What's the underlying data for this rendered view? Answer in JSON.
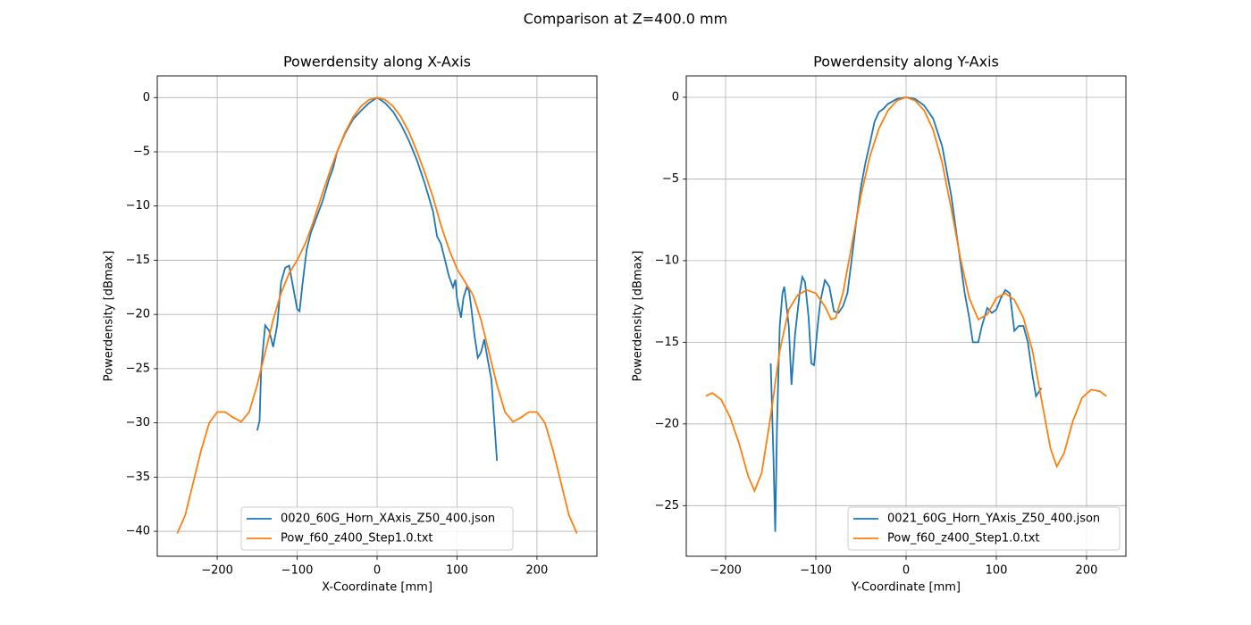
{
  "title": "Comparison at Z=400.0 mm",
  "chart_data": [
    {
      "type": "line",
      "title": "Powerdensity along X-Axis",
      "x_label": "X-Coordinate [mm]",
      "y_label": "Powerdensity [dBmax]",
      "xlim": [
        -275,
        275
      ],
      "ylim": [
        -42.3,
        2
      ],
      "xticks": [
        {
          "value": -200,
          "label": "−200"
        },
        {
          "value": -100,
          "label": "−100"
        },
        0,
        100,
        200
      ],
      "yticks": [
        {
          "value": -40,
          "label": "−40"
        },
        {
          "value": -35,
          "label": "−35"
        },
        {
          "value": -30,
          "label": "−30"
        },
        {
          "value": -25,
          "label": "−25"
        },
        {
          "value": -20,
          "label": "−20"
        },
        {
          "value": -15,
          "label": "−15"
        },
        {
          "value": -10,
          "label": "−10"
        },
        {
          "value": -5,
          "label": "−5"
        },
        0
      ],
      "grid": true,
      "legend_loc": "lower center",
      "series": [
        {
          "name": "0020_60G_Horn_XAxis_Z50_400.json",
          "color": "#1f77b4",
          "x": [
            -150,
            -147,
            -145,
            -140,
            -135,
            -130,
            -125,
            -120,
            -115,
            -110,
            -105,
            -100,
            -97,
            -93,
            -88,
            -83,
            -78,
            -73,
            -68,
            -60,
            -55,
            -50,
            -40,
            -30,
            -20,
            -10,
            0,
            10,
            20,
            30,
            40,
            50,
            60,
            70,
            75,
            80,
            85,
            90,
            95,
            98,
            100,
            105,
            108,
            112,
            115,
            118,
            122,
            126,
            130,
            134,
            138,
            143,
            150
          ],
          "values": [
            -30.7,
            -29.8,
            -25,
            -21,
            -21.5,
            -23,
            -21,
            -17,
            -15.7,
            -15.5,
            -17.5,
            -19.5,
            -19.7,
            -17,
            -14,
            -12.5,
            -11.5,
            -10.5,
            -9.5,
            -7.5,
            -6.5,
            -5,
            -3.3,
            -2,
            -1.2,
            -0.5,
            0,
            -0.5,
            -1.3,
            -2.5,
            -4,
            -5.8,
            -8,
            -10.5,
            -12.8,
            -13.5,
            -15,
            -16.5,
            -17.5,
            -16.8,
            -18.5,
            -20.3,
            -18.5,
            -17.5,
            -17.8,
            -19.5,
            -22,
            -24,
            -23.5,
            -22.3,
            -24,
            -26,
            -33.5
          ]
        },
        {
          "name": "Pow_f60_z400_Step1.0.txt",
          "color": "#ff7f0e",
          "x": [
            -250,
            -240,
            -230,
            -220,
            -210,
            -200,
            -190,
            -180,
            -170,
            -160,
            -150,
            -140,
            -130,
            -120,
            -110,
            -100,
            -90,
            -80,
            -70,
            -60,
            -50,
            -40,
            -30,
            -20,
            -10,
            0,
            10,
            20,
            30,
            40,
            50,
            60,
            70,
            80,
            90,
            100,
            110,
            120,
            130,
            140,
            150,
            160,
            170,
            180,
            190,
            200,
            210,
            220,
            230,
            240,
            250
          ],
          "values": [
            -40.2,
            -38.5,
            -35.5,
            -32.5,
            -30,
            -29,
            -29,
            -29.5,
            -29.9,
            -29,
            -26.5,
            -23.5,
            -20.5,
            -18,
            -16.2,
            -15,
            -13.5,
            -11.5,
            -9.2,
            -7,
            -5,
            -3.2,
            -1.8,
            -0.8,
            -0.2,
            0,
            -0.2,
            -0.8,
            -1.8,
            -3.2,
            -5,
            -7,
            -9.2,
            -11.8,
            -14,
            -15.8,
            -17,
            -18.2,
            -20.5,
            -23.5,
            -26.5,
            -29,
            -29.9,
            -29.5,
            -29,
            -29,
            -30,
            -32.5,
            -35.5,
            -38.5,
            -40.2
          ]
        }
      ]
    },
    {
      "type": "line",
      "title": "Powerdensity along Y-Axis",
      "x_label": "Y-Coordinate [mm]",
      "y_label": "Powerdensity [dBmax]",
      "xlim": [
        -243.6,
        243.6
      ],
      "ylim": [
        -28.1,
        1.31
      ],
      "xticks": [
        {
          "value": -200,
          "label": "−200"
        },
        {
          "value": -100,
          "label": "−100"
        },
        0,
        100,
        200
      ],
      "yticks": [
        {
          "value": -25,
          "label": "−25"
        },
        {
          "value": -20,
          "label": "−20"
        },
        {
          "value": -15,
          "label": "−15"
        },
        {
          "value": -10,
          "label": "−10"
        },
        {
          "value": -5,
          "label": "−5"
        },
        0
      ],
      "grid": true,
      "legend_loc": "lower right",
      "series": [
        {
          "name": "0021_60G_Horn_YAxis_Z50_400.json",
          "color": "#1f77b4",
          "x": [
            -150,
            -147,
            -145,
            -143,
            -140,
            -137,
            -135,
            -130,
            -127,
            -123,
            -118,
            -115,
            -112,
            -108,
            -105,
            -102,
            -98,
            -95,
            -90,
            -85,
            -80,
            -75,
            -70,
            -65,
            -60,
            -55,
            -50,
            -45,
            -40,
            -35,
            -30,
            -25,
            -20,
            -10,
            0,
            10,
            20,
            30,
            40,
            50,
            55,
            60,
            65,
            70,
            74,
            80,
            84,
            90,
            95,
            100,
            105,
            110,
            115,
            120,
            125,
            130,
            135,
            140,
            144,
            150
          ],
          "values": [
            -16.3,
            -22,
            -26.6,
            -20,
            -14,
            -12,
            -11.6,
            -14,
            -17.6,
            -14.5,
            -12,
            -11,
            -11.3,
            -13.5,
            -16.3,
            -16.4,
            -14,
            -12.5,
            -11.2,
            -11.6,
            -13.1,
            -13.2,
            -12.8,
            -12,
            -9.8,
            -7.5,
            -5.5,
            -4,
            -2.8,
            -1.5,
            -0.9,
            -0.7,
            -0.4,
            -0.1,
            0,
            -0.1,
            -0.5,
            -1.3,
            -3,
            -6,
            -8,
            -10,
            -12,
            -13.5,
            -15,
            -15,
            -14,
            -12.9,
            -13.2,
            -13,
            -12.3,
            -11.8,
            -12,
            -14.3,
            -14,
            -14,
            -15,
            -17,
            -18.3,
            -17.8
          ]
        },
        {
          "name": "Pow_f60_z400_Step1.0.txt",
          "color": "#ff7f0e",
          "x": [
            -222,
            -215,
            -205,
            -195,
            -185,
            -175,
            -168,
            -160,
            -150,
            -140,
            -130,
            -120,
            -110,
            -100,
            -90,
            -83,
            -78,
            -70,
            -60,
            -50,
            -40,
            -30,
            -20,
            -10,
            0,
            10,
            20,
            30,
            40,
            50,
            60,
            70,
            80,
            90,
            100,
            110,
            120,
            130,
            140,
            150,
            160,
            167,
            175,
            185,
            195,
            205,
            215,
            222
          ],
          "values": [
            -18.3,
            -18.1,
            -18.5,
            -19.6,
            -21.2,
            -23.2,
            -24.1,
            -23,
            -19.5,
            -15.5,
            -13,
            -12.1,
            -11.8,
            -12,
            -12.8,
            -13.6,
            -13.5,
            -12,
            -9,
            -6,
            -3.6,
            -1.9,
            -0.8,
            -0.2,
            0,
            -0.2,
            -0.8,
            -2,
            -4,
            -6.8,
            -9.8,
            -12.3,
            -13.6,
            -13.3,
            -12.3,
            -12,
            -12.4,
            -13.5,
            -15.5,
            -18.5,
            -21.5,
            -22.6,
            -21.8,
            -19.8,
            -18.4,
            -17.9,
            -18,
            -18.3
          ]
        }
      ]
    }
  ]
}
